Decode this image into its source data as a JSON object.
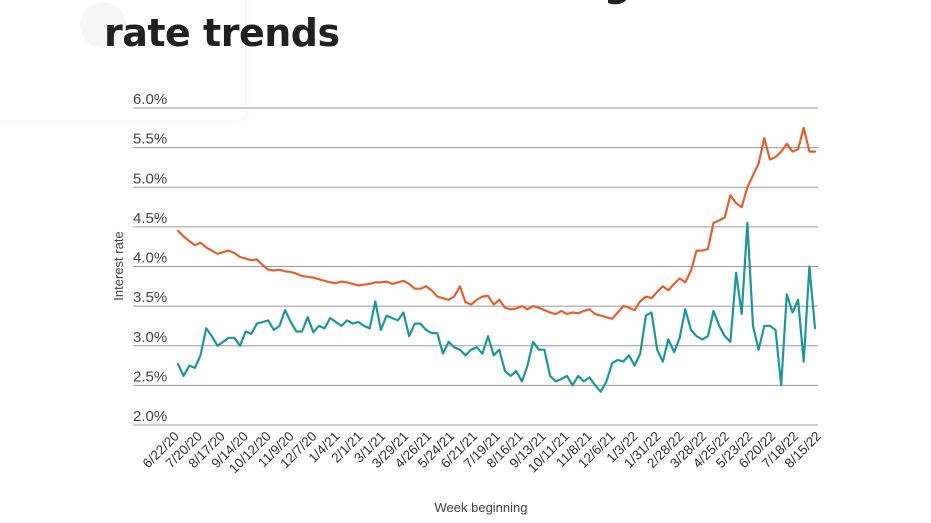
{
  "page": {
    "title_line1": "Conventional refinancing historical",
    "title_line2": "rate trends"
  },
  "colors": {
    "series_a": "#e2602c",
    "series_b": "#1d9696",
    "grid": "#9a9a9a",
    "text": "#444444"
  },
  "chart_data": {
    "type": "line",
    "xlabel": "Week beginning",
    "ylabel": "Interest rate",
    "ylim": [
      2.0,
      6.0
    ],
    "y_ticks": [
      "2.0%",
      "2.5%",
      "3.0%",
      "3.5%",
      "4.0%",
      "4.5%",
      "5.0%",
      "5.5%",
      "6.0%"
    ],
    "y_tick_values": [
      2.0,
      2.5,
      3.0,
      3.5,
      4.0,
      4.5,
      5.0,
      5.5,
      6.0
    ],
    "grid": "horizontal",
    "legend": "none",
    "x_tick_labels": [
      "6/22/20",
      "7/20/20",
      "8/17/20",
      "9/14/20",
      "10/12/20",
      "11/9/20",
      "12/7/20",
      "1/4/21",
      "2/1/21",
      "3/1/21",
      "3/29/21",
      "4/26/21",
      "5/24/21",
      "6/21/21",
      "7/19/21",
      "8/16/21",
      "9/13/21",
      "10/11/21",
      "11/8/21",
      "12/6/21",
      "1/3/22",
      "1/31/22",
      "2/28/22",
      "3/28/22",
      "4/25/22",
      "5/23/22",
      "6/20/22",
      "7/18/22",
      "8/15/22"
    ],
    "x": [
      "6/22/20",
      "6/29/20",
      "7/6/20",
      "7/13/20",
      "7/20/20",
      "7/27/20",
      "8/3/20",
      "8/10/20",
      "8/17/20",
      "8/24/20",
      "8/31/20",
      "9/7/20",
      "9/14/20",
      "9/21/20",
      "9/28/20",
      "10/5/20",
      "10/12/20",
      "10/19/20",
      "10/26/20",
      "11/2/20",
      "11/9/20",
      "11/16/20",
      "11/23/20",
      "11/30/20",
      "12/7/20",
      "12/14/20",
      "12/21/20",
      "12/28/20",
      "1/4/21",
      "1/11/21",
      "1/18/21",
      "1/25/21",
      "2/1/21",
      "2/8/21",
      "2/15/21",
      "2/22/21",
      "3/1/21",
      "3/8/21",
      "3/15/21",
      "3/22/21",
      "3/29/21",
      "4/5/21",
      "4/12/21",
      "4/19/21",
      "4/26/21",
      "5/3/21",
      "5/10/21",
      "5/17/21",
      "5/24/21",
      "5/31/21",
      "6/7/21",
      "6/14/21",
      "6/21/21",
      "6/28/21",
      "7/5/21",
      "7/12/21",
      "7/19/21",
      "7/26/21",
      "8/2/21",
      "8/9/21",
      "8/16/21",
      "8/23/21",
      "8/30/21",
      "9/6/21",
      "9/13/21",
      "9/20/21",
      "9/27/21",
      "10/4/21",
      "10/11/21",
      "10/18/21",
      "10/25/21",
      "11/1/21",
      "11/8/21",
      "11/15/21",
      "11/22/21",
      "11/29/21",
      "12/6/21",
      "12/13/21",
      "12/20/21",
      "12/27/21",
      "1/3/22",
      "1/10/22",
      "1/17/22",
      "1/24/22",
      "1/31/22",
      "2/7/22",
      "2/14/22",
      "2/21/22",
      "2/28/22",
      "3/7/22",
      "3/14/22",
      "3/21/22",
      "3/28/22",
      "4/4/22",
      "4/11/22",
      "4/18/22",
      "4/25/22",
      "5/2/22",
      "5/9/22",
      "5/16/22",
      "5/23/22",
      "5/30/22",
      "6/6/22",
      "6/13/22",
      "6/20/22",
      "6/27/22",
      "7/4/22",
      "7/11/22",
      "7/18/22",
      "7/25/22",
      "8/1/22",
      "8/8/22",
      "8/15/22",
      "8/22/22"
    ],
    "series": [
      {
        "values": [
          4.45,
          4.38,
          4.32,
          4.27,
          4.3,
          4.24,
          4.2,
          4.16,
          4.18,
          4.2,
          4.17,
          4.12,
          4.1,
          4.08,
          4.09,
          4.02,
          3.96,
          3.95,
          3.96,
          3.94,
          3.93,
          3.91,
          3.88,
          3.87,
          3.86,
          3.84,
          3.82,
          3.8,
          3.79,
          3.81,
          3.8,
          3.78,
          3.76,
          3.77,
          3.78,
          3.8,
          3.8,
          3.81,
          3.78,
          3.8,
          3.82,
          3.78,
          3.72,
          3.72,
          3.75,
          3.7,
          3.62,
          3.6,
          3.58,
          3.62,
          3.75,
          3.55,
          3.52,
          3.58,
          3.62,
          3.63,
          3.52,
          3.58,
          3.48,
          3.46,
          3.47,
          3.5,
          3.46,
          3.5,
          3.48,
          3.45,
          3.42,
          3.4,
          3.44,
          3.4,
          3.42,
          3.41,
          3.44,
          3.46,
          3.4,
          3.38,
          3.36,
          3.34,
          3.42,
          3.5,
          3.48,
          3.45,
          3.56,
          3.62,
          3.6,
          3.68,
          3.75,
          3.7,
          3.78,
          3.85,
          3.8,
          3.95,
          4.2,
          4.2,
          4.22,
          4.55,
          4.58,
          4.62,
          4.9,
          4.8,
          4.75,
          5.0,
          5.15,
          5.3,
          5.62,
          5.35,
          5.38,
          5.45,
          5.55,
          5.45,
          5.48,
          5.75,
          5.45,
          5.45
        ]
      },
      {
        "values": [
          2.77,
          2.62,
          2.75,
          2.72,
          2.88,
          3.22,
          3.12,
          3.0,
          3.05,
          3.1,
          3.1,
          3.0,
          3.18,
          3.15,
          3.28,
          3.3,
          3.32,
          3.2,
          3.25,
          3.45,
          3.3,
          3.18,
          3.18,
          3.36,
          3.17,
          3.25,
          3.22,
          3.35,
          3.3,
          3.25,
          3.32,
          3.28,
          3.3,
          3.25,
          3.22,
          3.56,
          3.2,
          3.38,
          3.35,
          3.32,
          3.42,
          3.12,
          3.28,
          3.28,
          3.2,
          3.16,
          3.16,
          2.9,
          3.05,
          2.98,
          2.95,
          2.88,
          2.95,
          2.98,
          2.9,
          3.12,
          2.88,
          2.95,
          2.68,
          2.62,
          2.68,
          2.55,
          2.75,
          3.05,
          2.95,
          2.95,
          2.62,
          2.55,
          2.58,
          2.62,
          2.5,
          2.62,
          2.55,
          2.6,
          2.5,
          2.42,
          2.55,
          2.78,
          2.82,
          2.8,
          2.88,
          2.75,
          2.9,
          3.38,
          3.42,
          2.95,
          2.8,
          3.08,
          2.92,
          3.1,
          3.46,
          3.2,
          3.12,
          3.08,
          3.12,
          3.44,
          3.25,
          3.12,
          3.05,
          3.92,
          3.4,
          4.55,
          3.25,
          2.95,
          3.25,
          3.25,
          3.2,
          2.5,
          3.65,
          3.42,
          3.58,
          2.8,
          4.0,
          3.22
        ]
      }
    ]
  }
}
